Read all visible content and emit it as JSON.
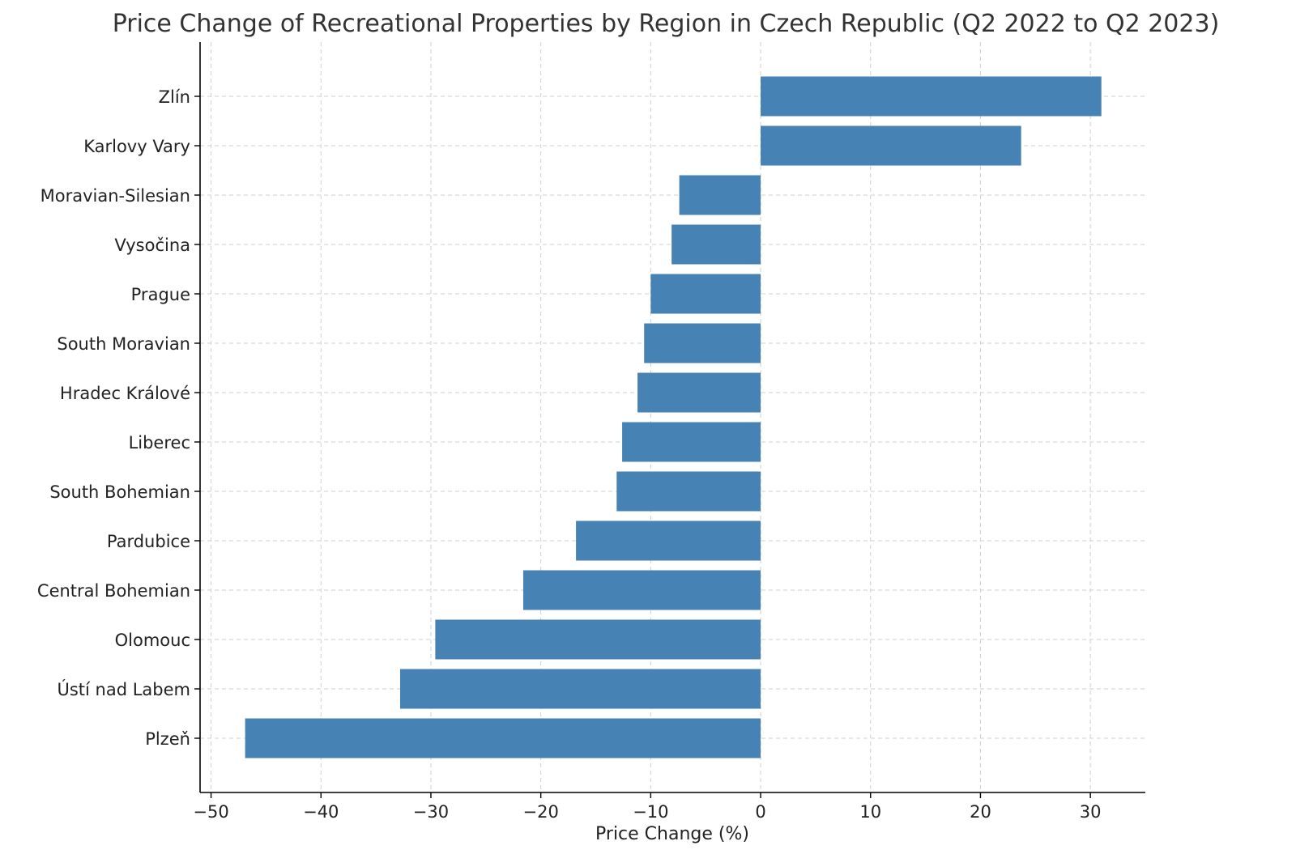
{
  "chart_data": {
    "type": "bar",
    "orientation": "horizontal",
    "title": "Price Change of Recreational Properties by Region in Czech Republic (Q2 2022 to Q2 2023)",
    "xlabel": "Price Change (%)",
    "ylabel": "",
    "categories": [
      "Zlín",
      "Karlovy Vary",
      "Moravian-Silesian",
      "Vysočina",
      "Prague",
      "South Moravian",
      "Hradec Králové",
      "Liberec",
      "South Bohemian",
      "Pardubice",
      "Central Bohemian",
      "Olomouc",
      "Ústí nad Labem",
      "Plzeň"
    ],
    "values": [
      31.0,
      23.7,
      -7.4,
      -8.1,
      -10.0,
      -10.6,
      -11.2,
      -12.6,
      -13.1,
      -16.8,
      -21.6,
      -29.6,
      -32.8,
      -46.9
    ],
    "xlim": [
      -51,
      35
    ],
    "xticks": [
      -50,
      -40,
      -30,
      -20,
      -10,
      0,
      10,
      20,
      30
    ],
    "xtick_labels": [
      "−50",
      "−40",
      "−30",
      "−20",
      "−10",
      "0",
      "10",
      "20",
      "30"
    ],
    "bar_color": "#4682b4",
    "grid": true
  }
}
